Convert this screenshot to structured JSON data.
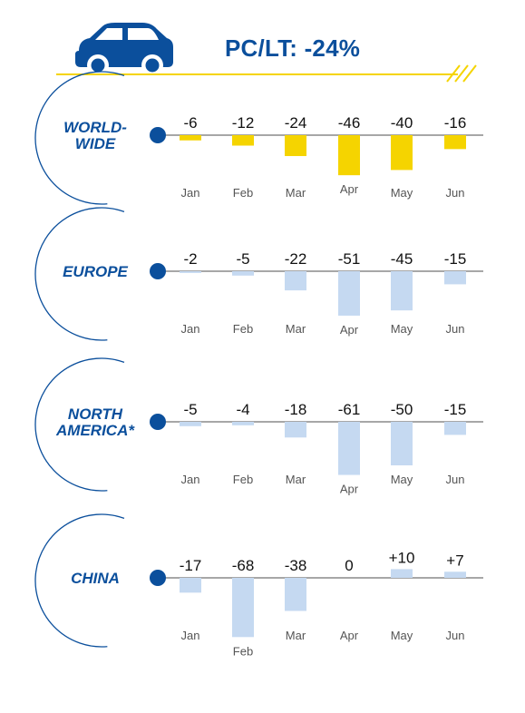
{
  "header": {
    "title": "PC/LT: -24%",
    "icon": "car-icon",
    "brand_color": "#0b4f9c",
    "accent_color": "#f5d400"
  },
  "chart_data": [
    {
      "type": "bar",
      "region": "WORLD-\nWIDE",
      "categories": [
        "Jan",
        "Feb",
        "Mar",
        "Apr",
        "May",
        "Jun"
      ],
      "values": [
        -6,
        -12,
        -24,
        -46,
        -40,
        -16
      ],
      "value_labels": [
        "-6",
        "-12",
        "-24",
        "-46",
        "-40",
        "-16"
      ],
      "color": "#f5d400"
    },
    {
      "type": "bar",
      "region": "EUROPE",
      "categories": [
        "Jan",
        "Feb",
        "Mar",
        "Apr",
        "May",
        "Jun"
      ],
      "values": [
        -2,
        -5,
        -22,
        -51,
        -45,
        -15
      ],
      "value_labels": [
        "-2",
        "-5",
        "-22",
        "-51",
        "-45",
        "-15"
      ],
      "color": "#c5d9f1"
    },
    {
      "type": "bar",
      "region": "NORTH\nAMERICA*",
      "categories": [
        "Jan",
        "Feb",
        "Mar",
        "Apr",
        "May",
        "Jun"
      ],
      "values": [
        -5,
        -4,
        -18,
        -61,
        -50,
        -15
      ],
      "value_labels": [
        "-5",
        "-4",
        "-18",
        "-61",
        "-50",
        "-15"
      ],
      "color": "#c5d9f1"
    },
    {
      "type": "bar",
      "region": "CHINA",
      "categories": [
        "Jan",
        "Feb",
        "Mar",
        "Apr",
        "May",
        "Jun"
      ],
      "values": [
        -17,
        -68,
        -38,
        0,
        10,
        7
      ],
      "value_labels": [
        "-17",
        "-68",
        "-38",
        "0",
        "+10",
        "+7"
      ],
      "color": "#c5d9f1"
    }
  ]
}
